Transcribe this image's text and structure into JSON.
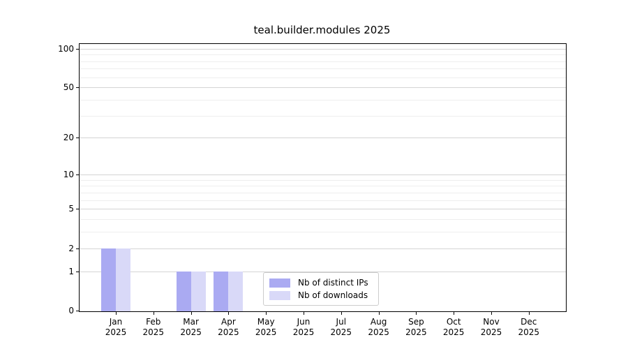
{
  "chart_data": {
    "type": "bar",
    "title": "teal.builder.modules 2025",
    "categories": [
      "Jan",
      "Feb",
      "Mar",
      "Apr",
      "May",
      "Jun",
      "Jul",
      "Aug",
      "Sep",
      "Oct",
      "Nov",
      "Dec"
    ],
    "category_sublabel": "2025",
    "series": [
      {
        "name": "Nb of distinct IPs",
        "color": "#aaaaf2",
        "values": [
          2,
          0,
          1,
          1,
          0,
          0,
          0,
          0,
          0,
          0,
          0,
          0
        ]
      },
      {
        "name": "Nb of downloads",
        "color": "#d9d9f8",
        "values": [
          2,
          0,
          1,
          1,
          0,
          0,
          0,
          0,
          0,
          0,
          0,
          0
        ]
      }
    ],
    "yscale": "log1p",
    "ylim": [
      0,
      100
    ],
    "y_tick_values": [
      0,
      1,
      2,
      5,
      10,
      20,
      50,
      100
    ],
    "y_minor_gridlines": [
      3,
      4,
      6,
      7,
      8,
      9,
      30,
      40,
      60,
      70,
      80,
      90
    ],
    "grid": true,
    "legend_position": "bottom-center"
  },
  "colors": {
    "background": "#ffffff",
    "axis": "#000000",
    "major_grid": "#d4d4d4",
    "minor_grid": "#eeeeee",
    "legend_border": "#cccccc",
    "text": "#000000"
  }
}
